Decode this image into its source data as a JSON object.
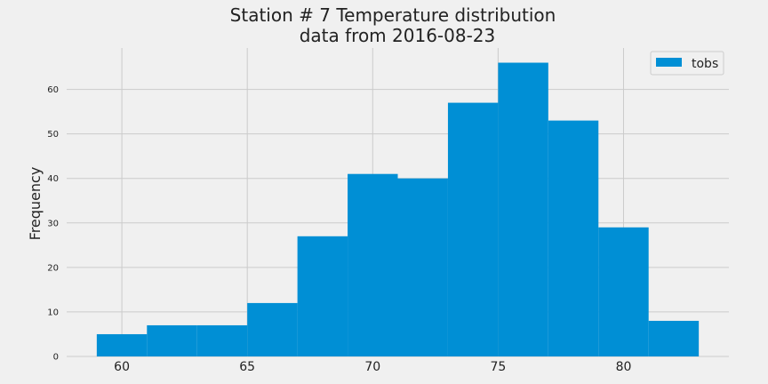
{
  "chart_data": {
    "type": "bar",
    "title": "Station # 7 Temperature distribution",
    "subtitle": "data from 2016-08-23",
    "xlabel": "",
    "ylabel": "Frequency",
    "series": [
      {
        "name": "tobs",
        "bins": [
          {
            "x0": 59,
            "x1": 61,
            "count": 5
          },
          {
            "x0": 61,
            "x1": 63,
            "count": 7
          },
          {
            "x0": 63,
            "x1": 65,
            "count": 7
          },
          {
            "x0": 65,
            "x1": 67,
            "count": 12
          },
          {
            "x0": 67,
            "x1": 69,
            "count": 27
          },
          {
            "x0": 69,
            "x1": 71,
            "count": 41
          },
          {
            "x0": 71,
            "x1": 73,
            "count": 40
          },
          {
            "x0": 73,
            "x1": 75,
            "count": 57
          },
          {
            "x0": 75,
            "x1": 77,
            "count": 66
          },
          {
            "x0": 77,
            "x1": 79,
            "count": 53
          },
          {
            "x0": 79,
            "x1": 81,
            "count": 29
          },
          {
            "x0": 81,
            "x1": 83,
            "count": 8
          }
        ]
      }
    ],
    "xlim": [
      57.8,
      84.2
    ],
    "ylim": [
      0,
      69.3
    ],
    "xticks": [
      60,
      65,
      70,
      75,
      80
    ],
    "yticks": [
      0,
      10,
      20,
      30,
      40,
      50,
      60
    ],
    "grid": true,
    "legend_position": "top-right",
    "colors": {
      "bar": "#008fd5",
      "background": "#f0f0f0",
      "grid": "#cbcbcb"
    }
  }
}
